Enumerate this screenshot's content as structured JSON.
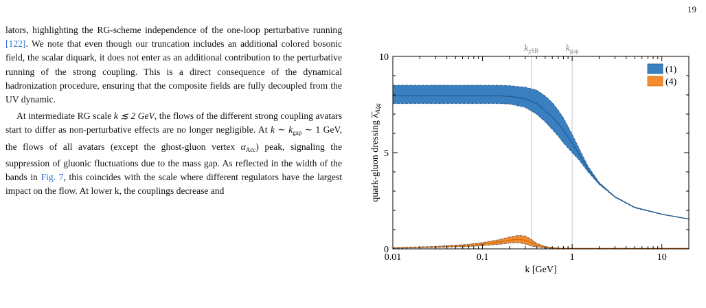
{
  "page_number": "19",
  "paragraphs": {
    "p1": {
      "a": "lators, highlighting the RG-scheme independence of the one-loop perturbative running ",
      "ref": "[122]",
      "b": ". We note that even though our truncation includes an additional colored bosonic field, the scalar diquark, it does not enter as an additional contribution to the perturbative running of the strong coupling. This is a direct consequence of the dynamical hadronization procedure, ensuring that the composite fields are fully decoupled from the UV dynamic."
    },
    "p2": {
      "a": "At intermediate RG scale ",
      "k_le": "k ≲ 2 GeV",
      "b": ", the flows of the different strong coupling avatars start to differ as non-perturbative effects are no longer negligible. At ",
      "k_gap": "k ∼ k",
      "gap_sub": "gap",
      "c": " ∼ 1 GeV, the flows of all avatars (except the ghost-gluon vertex ",
      "alpha": "α",
      "alpha_sub": "Ac̄c",
      "d": ") peak, signaling the suppression of gluonic fluctuations due to the mass gap. As reflected in the width of the bands in ",
      "figref": "Fig. 7",
      "e": ", this coincides with the scale where different regulators have the largest impact on the flow. At lower k, the couplings decrease and"
    }
  },
  "chart_data": {
    "type": "area",
    "xscale": "log",
    "xlim": [
      0.01,
      20
    ],
    "ylim": [
      0,
      10
    ],
    "xlabel": "k [GeV]",
    "ylabel": "quark-gluon dressing λ̄",
    "ylabel_sub": "Aq̄q",
    "x_ticks": [
      "0.01",
      "0.1",
      "1",
      "10"
    ],
    "x_tick_values": [
      0.01,
      0.1,
      1,
      10
    ],
    "y_ticks": [
      "0",
      "5",
      "10"
    ],
    "y_tick_values": [
      0,
      5,
      10
    ],
    "vlines": [
      {
        "label": "k",
        "sub": "χSB",
        "x": 0.35
      },
      {
        "label": "k",
        "sub": "gap",
        "x": 1.0
      }
    ],
    "legend_position": "top-right",
    "colors": {
      "series1": "#3a7fbf",
      "series2": "#f28c2f",
      "vline": "#c8c8c8"
    },
    "series": [
      {
        "name": "(1)",
        "x": [
          0.01,
          0.03,
          0.07,
          0.1,
          0.15,
          0.2,
          0.3,
          0.4,
          0.5,
          0.6,
          0.7,
          0.8,
          1.0,
          1.2,
          1.5,
          2,
          3,
          5,
          10,
          20
        ],
        "y": [
          7.95,
          7.95,
          7.95,
          7.95,
          7.95,
          7.92,
          7.8,
          7.55,
          7.2,
          6.85,
          6.5,
          6.15,
          5.5,
          4.9,
          4.15,
          3.4,
          2.7,
          2.15,
          1.8,
          1.55
        ],
        "upper": [
          8.5,
          8.5,
          8.5,
          8.5,
          8.5,
          8.48,
          8.4,
          8.25,
          7.95,
          7.6,
          7.2,
          6.8,
          5.95,
          5.2,
          4.3,
          3.45,
          2.72,
          2.17,
          1.81,
          1.56
        ],
        "lower": [
          7.55,
          7.55,
          7.55,
          7.55,
          7.55,
          7.52,
          7.35,
          7.0,
          6.6,
          6.2,
          5.85,
          5.5,
          5.0,
          4.6,
          4.0,
          3.35,
          2.68,
          2.13,
          1.79,
          1.54
        ]
      },
      {
        "name": "(4)",
        "x": [
          0.01,
          0.03,
          0.07,
          0.1,
          0.15,
          0.2,
          0.25,
          0.3,
          0.35,
          0.4,
          0.5,
          0.7,
          1.0,
          2,
          5,
          20
        ],
        "y": [
          0.05,
          0.1,
          0.18,
          0.25,
          0.35,
          0.45,
          0.5,
          0.45,
          0.32,
          0.2,
          0.08,
          0.03,
          0.02,
          0.02,
          0.02,
          0.02
        ],
        "upper": [
          0.07,
          0.13,
          0.24,
          0.33,
          0.47,
          0.62,
          0.7,
          0.67,
          0.5,
          0.3,
          0.12,
          0.04,
          0.03,
          0.03,
          0.03,
          0.03
        ],
        "lower": [
          0.03,
          0.07,
          0.12,
          0.17,
          0.23,
          0.3,
          0.32,
          0.25,
          0.15,
          0.1,
          0.04,
          0.02,
          0.01,
          0.01,
          0.01,
          0.01
        ]
      }
    ]
  }
}
